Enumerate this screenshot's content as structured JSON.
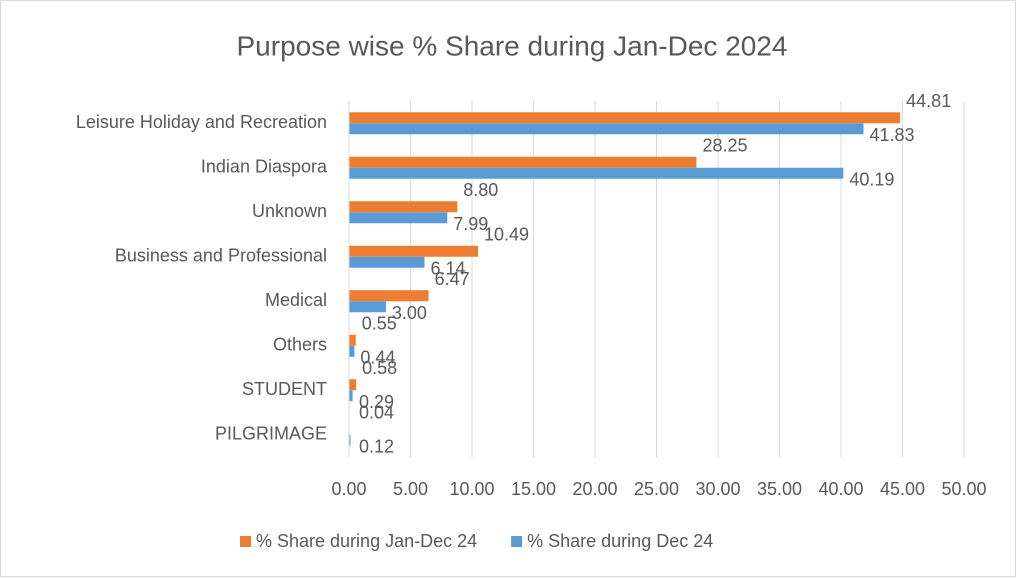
{
  "chart_data": {
    "type": "bar",
    "orientation": "horizontal",
    "title": "Purpose wise % Share during Jan-Dec 2024",
    "categories": [
      "Leisure Holiday and Recreation",
      "Indian Diaspora",
      "Unknown",
      "Business and Professional",
      "Medical",
      "Others",
      "STUDENT",
      "PILGRIMAGE"
    ],
    "series": [
      {
        "name": "% Share during Jan-Dec 24",
        "color": "#ED7D31",
        "values": [
          44.81,
          28.25,
          8.8,
          10.49,
          6.47,
          0.55,
          0.58,
          0.04
        ],
        "value_labels": [
          "44.81",
          "28.25",
          "8.80",
          "10.49",
          "6.47",
          "0.55",
          "0.58",
          "0.04"
        ]
      },
      {
        "name": "% Share during Dec 24",
        "color": "#5B9BD5",
        "values": [
          41.83,
          40.19,
          7.99,
          6.14,
          3.0,
          0.44,
          0.29,
          0.12
        ],
        "value_labels": [
          "41.83",
          "40.19",
          "7.99",
          "6.14",
          "3.00",
          "0.44",
          "0.29",
          "0.12"
        ]
      }
    ],
    "xlim": [
      0,
      50
    ],
    "xticks": [
      {
        "value": 0,
        "label": "0.00"
      },
      {
        "value": 5,
        "label": "5.00"
      },
      {
        "value": 10,
        "label": "10.00"
      },
      {
        "value": 15,
        "label": "15.00"
      },
      {
        "value": 20,
        "label": "20.00"
      },
      {
        "value": 25,
        "label": "25.00"
      },
      {
        "value": 30,
        "label": "30.00"
      },
      {
        "value": 35,
        "label": "35.00"
      },
      {
        "value": 40,
        "label": "40.00"
      },
      {
        "value": 45,
        "label": "45.00"
      },
      {
        "value": 50,
        "label": "50.00"
      }
    ],
    "grid": true,
    "legend": "bottom"
  }
}
